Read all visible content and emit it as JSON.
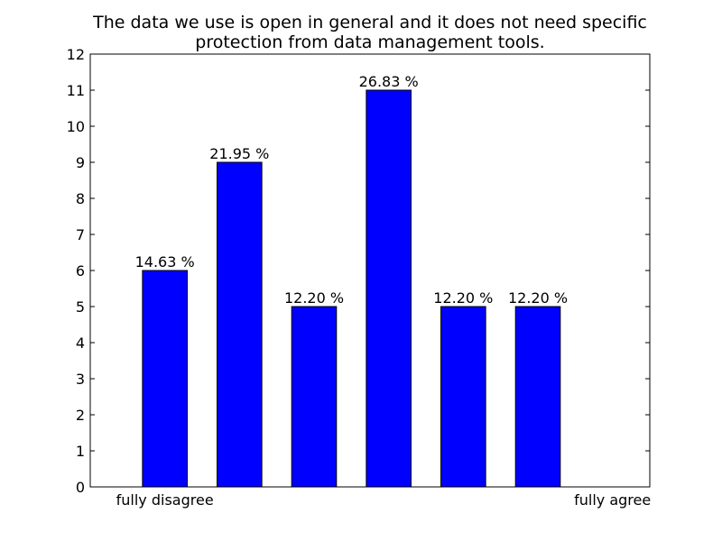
{
  "chart_data": {
    "type": "bar",
    "title_lines": [
      "The data we use is open in general and it does not need specific",
      "protection from data management tools."
    ],
    "categories": [
      "fully disagree",
      "",
      "",
      "",
      "",
      "",
      "fully agree"
    ],
    "values": [
      6,
      9,
      5,
      11,
      5,
      5,
      0
    ],
    "data_labels": [
      "14.63 %",
      "21.95 %",
      "12.20 %",
      "26.83 %",
      "12.20 %",
      "12.20 %",
      ""
    ],
    "ylim": [
      0,
      12
    ],
    "yticks": [
      0,
      1,
      2,
      3,
      4,
      5,
      6,
      7,
      8,
      9,
      10,
      11,
      12
    ],
    "grid": false,
    "colors": {
      "bar": "#0000ff",
      "edge": "#000000"
    }
  }
}
